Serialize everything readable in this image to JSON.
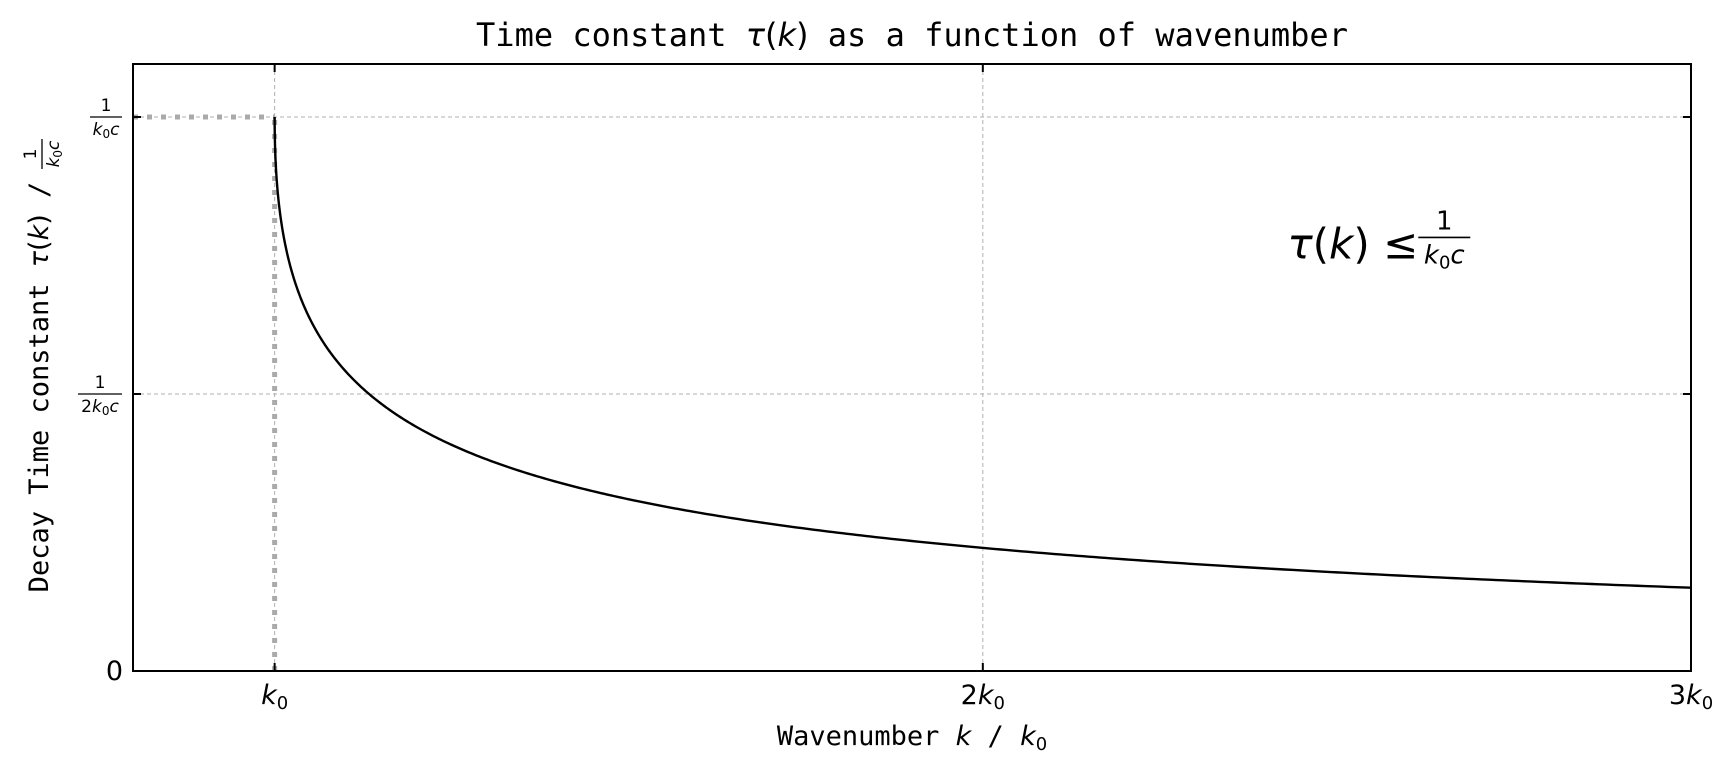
{
  "chart_data": {
    "type": "line",
    "title": {
      "prefix": "Time constant ",
      "math_tau": "τ",
      "math_open": "(",
      "math_k": "k",
      "math_close": ")",
      "suffix": " as a function of wavenumber"
    },
    "xlabel": {
      "prefix": "Wavenumber ",
      "k": "k",
      "sep": " / ",
      "k0_base": "k",
      "k0_sub": "0"
    },
    "ylabel": {
      "prefix": "Decay Time constant ",
      "tau": "τ",
      "open": "(",
      "k": "k",
      "close": ")",
      "sep": " / ",
      "frac_num": "1",
      "frac_den_k": "k",
      "frac_den_sub": "0",
      "frac_den_c": "c"
    },
    "x_unit": "k0",
    "y_unit": "1/(k0 c)",
    "xlim": [
      0.8,
      3.0
    ],
    "ylim": [
      0,
      1.0
    ],
    "x_ticks": [
      {
        "value": 1,
        "coef": "",
        "base": "k",
        "sub": "0"
      },
      {
        "value": 2,
        "coef": "2",
        "base": "k",
        "sub": "0"
      },
      {
        "value": 3,
        "coef": "3",
        "base": "k",
        "sub": "0"
      }
    ],
    "y_ticks": [
      {
        "value": 0,
        "label": "0"
      },
      {
        "value": 0.5,
        "num": "1",
        "den_coef": "2",
        "den_k": "k",
        "den_sub": "0",
        "den_c": "c"
      },
      {
        "value": 1.0,
        "num": "1",
        "den_coef": "",
        "den_k": "k",
        "den_sub": "0",
        "den_c": "c"
      }
    ],
    "grid": true,
    "series": [
      {
        "function": "1/sqrt(x^2 - 1) scaled so curve passes (1,1) cutoff",
        "x": [
          1.0,
          1.0005,
          1.002,
          1.005,
          1.01,
          1.02,
          1.04,
          1.06,
          1.08,
          1.1,
          1.13,
          1.16,
          1.2,
          1.25,
          1.3,
          1.35,
          1.4,
          1.5,
          1.6,
          1.7,
          1.8,
          1.9,
          2.0,
          2.1,
          2.2,
          2.3,
          2.4,
          2.5,
          2.6,
          2.7,
          2.8,
          2.9,
          3.0
        ],
        "y": [
          1.0,
          0.99,
          0.96,
          0.91,
          0.86,
          0.8,
          0.73,
          0.68,
          0.635,
          0.6,
          0.56,
          0.525,
          0.49,
          0.45,
          0.42,
          0.395,
          0.37,
          0.33,
          0.3,
          0.273,
          0.251,
          0.232,
          0.216,
          0.202,
          0.19,
          0.179,
          0.169,
          0.16,
          0.152,
          0.145,
          0.138,
          0.132,
          0.077
        ],
        "color": "#000000"
      }
    ],
    "reference_lines": [
      {
        "type": "horizontal",
        "y": 1.0,
        "x_from": 0.8,
        "x_to": 1.0,
        "style": "dotted",
        "color": "#aaaaaa"
      },
      {
        "type": "vertical",
        "x": 1.0,
        "y_from": 0,
        "y_to": 1.0,
        "style": "dotted",
        "color": "#aaaaaa"
      }
    ],
    "annotation": {
      "tau": "τ",
      "open": "(",
      "k": "k",
      "close": ")",
      "leq": " ≤ ",
      "frac_num": "1",
      "frac_den_k": "k",
      "frac_den_sub": "0",
      "frac_den_c": "c",
      "x": 2.43,
      "y": 0.77
    }
  }
}
